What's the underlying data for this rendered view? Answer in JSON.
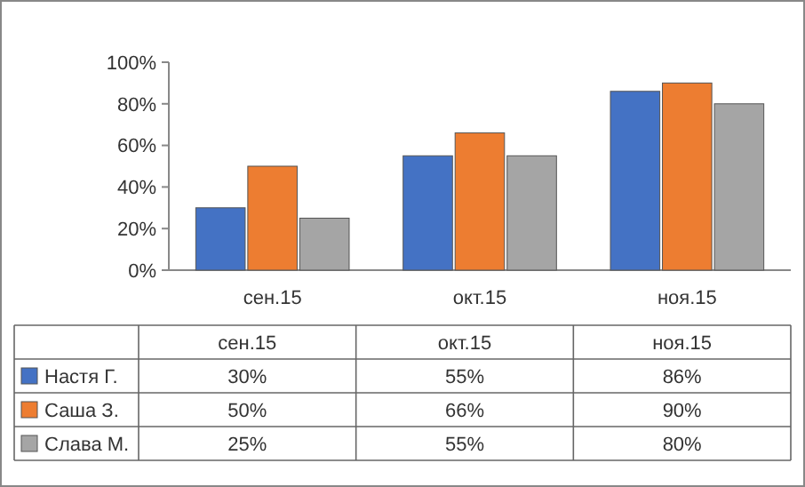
{
  "chart_data": {
    "type": "bar",
    "categories": [
      "сен.15",
      "окт.15",
      "ноя.15"
    ],
    "series": [
      {
        "name": "Настя Г.",
        "color": "#4472c4",
        "values": [
          30,
          55,
          86
        ],
        "value_labels": [
          "30%",
          "55%",
          "86%"
        ]
      },
      {
        "name": "Саша З.",
        "color": "#ed7d31",
        "values": [
          50,
          66,
          90
        ],
        "value_labels": [
          "50%",
          "66%",
          "90%"
        ]
      },
      {
        "name": "Слава М.",
        "color": "#a5a5a5",
        "values": [
          25,
          55,
          80
        ],
        "value_labels": [
          "25%",
          "55%",
          "80%"
        ]
      }
    ],
    "ylim": [
      0,
      100
    ],
    "yticks": [
      {
        "value": 0,
        "label": "0%"
      },
      {
        "value": 20,
        "label": "20%"
      },
      {
        "value": 40,
        "label": "40%"
      },
      {
        "value": 60,
        "label": "60%"
      },
      {
        "value": 80,
        "label": "80%"
      },
      {
        "value": 100,
        "label": "100%"
      }
    ],
    "grid": false,
    "legend": "bottom"
  }
}
